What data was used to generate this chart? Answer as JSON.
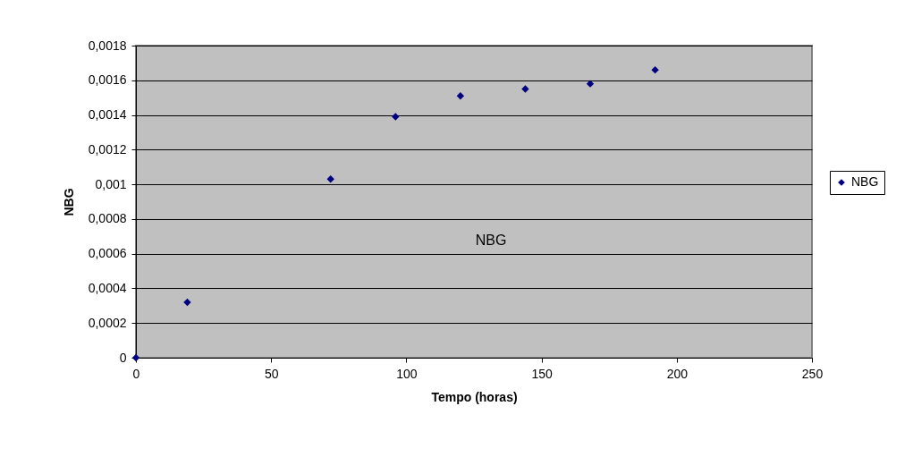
{
  "chart_data": {
    "type": "scatter",
    "xlabel": "Tempo (horas)",
    "ylabel": "NBG",
    "x": [
      0,
      19,
      72,
      96,
      120,
      144,
      168,
      192
    ],
    "series": [
      {
        "name": "NBG",
        "color": "#000080",
        "values": [
          0,
          0.00032,
          0.00103,
          0.00139,
          0.00151,
          0.00155,
          0.00158,
          0.00166
        ]
      }
    ],
    "xlim": [
      0,
      250
    ],
    "xticks": [
      0,
      50,
      100,
      150,
      200,
      250
    ],
    "ylim": [
      0,
      0.0018
    ],
    "yticks": [
      0,
      {
        "value": 0.0002,
        "label": "0,0002"
      },
      {
        "value": 0.0004,
        "label": "0,0004"
      },
      {
        "value": 0.0006,
        "label": "0,0006"
      },
      {
        "value": 0.0008,
        "label": "0,0008"
      },
      {
        "value": 0.001,
        "label": "0,001"
      },
      {
        "value": 0.0012,
        "label": "0,0012"
      },
      {
        "value": 0.0014,
        "label": "0,0014"
      },
      {
        "value": 0.0016,
        "label": "0,0016"
      },
      {
        "value": 0.0018,
        "label": "0,0018"
      }
    ],
    "annotations": [
      "NBG"
    ],
    "grid": "y",
    "legend": "right",
    "marker": "diamond"
  }
}
